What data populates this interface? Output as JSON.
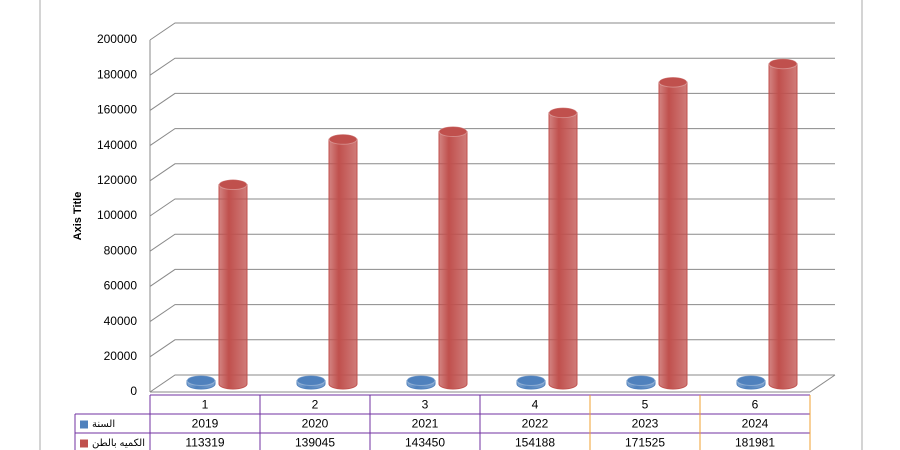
{
  "chart_data": {
    "type": "bar",
    "y_label": "Axis Title",
    "categories": [
      "1",
      "2",
      "3",
      "4",
      "5",
      "6"
    ],
    "series": [
      {
        "name": "السنة",
        "color": "#4f81bd",
        "values": [
          2019,
          2020,
          2021,
          2022,
          2023,
          2024
        ]
      },
      {
        "name": "الكميه بالطن",
        "color": "#c0504d",
        "values": [
          113319,
          139045,
          143450,
          154188,
          171525,
          181981
        ]
      }
    ],
    "ylim": [
      0,
      200000
    ],
    "yticks": [
      0,
      20000,
      40000,
      60000,
      80000,
      100000,
      120000,
      140000,
      160000,
      180000,
      200000
    ],
    "grid": true
  }
}
